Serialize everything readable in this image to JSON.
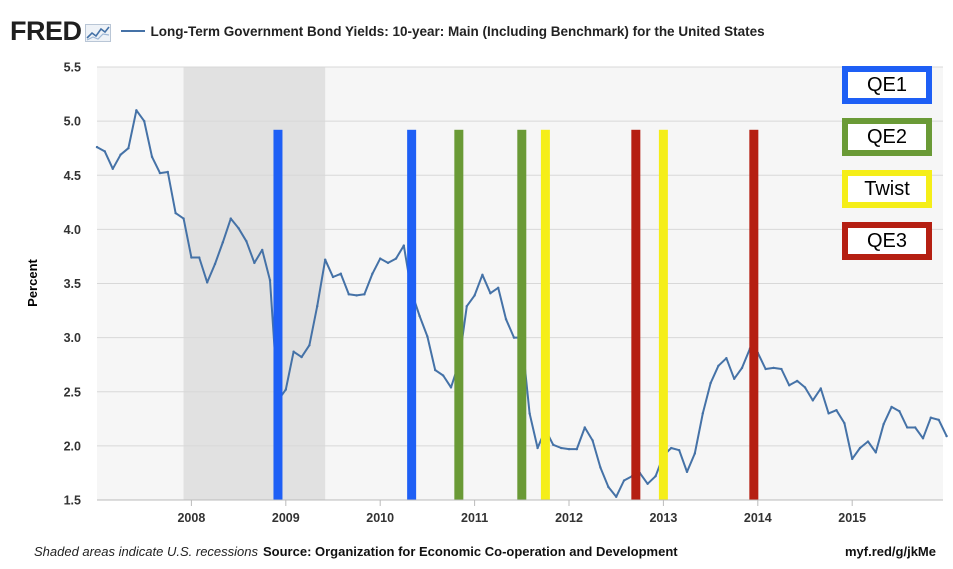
{
  "header": {
    "logo_text": "FRED",
    "logo_icon": "sparkline-icon",
    "title": "Long-Term Government Bond Yields: 10-year: Main (Including Benchmark) for the United States",
    "series_color": "#4572a7"
  },
  "footer": {
    "recession_note": "Shaded areas indicate U.S. recessions",
    "source": "Source: Organization for Economic Co-operation and Development",
    "short_link": "myf.red/g/jkMe"
  },
  "legend_boxes": [
    {
      "label": "QE1",
      "color": "#1e5ff5"
    },
    {
      "label": "QE2",
      "color": "#6a9a36"
    },
    {
      "label": "Twist",
      "color": "#f5ee18"
    },
    {
      "label": "QE3",
      "color": "#b51f12"
    }
  ],
  "chart_data": {
    "type": "line",
    "title": "Long-Term Government Bond Yields: 10-year: Main (Including Benchmark) for the United States",
    "xlabel": "",
    "ylabel": "Percent",
    "xlim": [
      2007.0,
      2016.0
    ],
    "ylim": [
      1.5,
      5.5
    ],
    "y_ticks": [
      "1.5",
      "2.0",
      "2.5",
      "3.0",
      "3.5",
      "4.0",
      "4.5",
      "5.0",
      "5.5"
    ],
    "x_ticks": [
      "2008",
      "2009",
      "2010",
      "2011",
      "2012",
      "2013",
      "2014",
      "2015"
    ],
    "grid": true,
    "recession_shading": [
      [
        2007.917,
        2009.417
      ]
    ],
    "series": [
      {
        "name": "Long-Term Government Bond Yields: 10-year: Main (Including Benchmark) for the United States",
        "color": "#4572a7",
        "x": [
          2007.0,
          2007.083,
          2007.167,
          2007.25,
          2007.333,
          2007.417,
          2007.5,
          2007.583,
          2007.667,
          2007.75,
          2007.833,
          2007.917,
          2008.0,
          2008.083,
          2008.167,
          2008.25,
          2008.333,
          2008.417,
          2008.5,
          2008.583,
          2008.667,
          2008.75,
          2008.833,
          2008.917,
          2009.0,
          2009.083,
          2009.167,
          2009.25,
          2009.333,
          2009.417,
          2009.5,
          2009.583,
          2009.667,
          2009.75,
          2009.833,
          2009.917,
          2010.0,
          2010.083,
          2010.167,
          2010.25,
          2010.333,
          2010.417,
          2010.5,
          2010.583,
          2010.667,
          2010.75,
          2010.833,
          2010.917,
          2011.0,
          2011.083,
          2011.167,
          2011.25,
          2011.333,
          2011.417,
          2011.5,
          2011.583,
          2011.667,
          2011.75,
          2011.833,
          2011.917,
          2012.0,
          2012.083,
          2012.167,
          2012.25,
          2012.333,
          2012.417,
          2012.5,
          2012.583,
          2012.667,
          2012.75,
          2012.833,
          2012.917,
          2013.0,
          2013.083,
          2013.167,
          2013.25,
          2013.333,
          2013.417,
          2013.5,
          2013.583,
          2013.667,
          2013.75,
          2013.833,
          2013.917,
          2014.0,
          2014.083,
          2014.167,
          2014.25,
          2014.333,
          2014.417,
          2014.5,
          2014.583,
          2014.667,
          2014.75,
          2014.833,
          2014.917,
          2015.0,
          2015.083,
          2015.167,
          2015.25,
          2015.333,
          2015.417,
          2015.5,
          2015.583,
          2015.667,
          2015.75,
          2015.833,
          2015.917,
          2016.0
        ],
        "y": [
          4.76,
          4.72,
          4.56,
          4.69,
          4.75,
          5.1,
          5.0,
          4.67,
          4.52,
          4.53,
          4.15,
          4.1,
          3.74,
          3.74,
          3.51,
          3.68,
          3.88,
          4.1,
          4.01,
          3.89,
          3.69,
          3.81,
          3.53,
          2.42,
          2.52,
          2.87,
          2.82,
          2.93,
          3.29,
          3.72,
          3.56,
          3.59,
          3.4,
          3.39,
          3.4,
          3.59,
          3.73,
          3.69,
          3.73,
          3.85,
          3.42,
          3.2,
          3.01,
          2.7,
          2.65,
          2.54,
          2.76,
          3.29,
          3.39,
          3.58,
          3.41,
          3.46,
          3.17,
          3.0,
          3.0,
          2.3,
          1.98,
          2.15,
          2.01,
          1.98,
          1.97,
          1.97,
          2.17,
          2.05,
          1.8,
          1.62,
          1.53,
          1.68,
          1.72,
          1.75,
          1.65,
          1.72,
          1.91,
          1.98,
          1.96,
          1.76,
          1.93,
          2.3,
          2.58,
          2.74,
          2.81,
          2.62,
          2.72,
          2.9,
          2.86,
          2.71,
          2.72,
          2.71,
          2.56,
          2.6,
          2.54,
          2.42,
          2.53,
          2.3,
          2.33,
          2.21,
          1.88,
          1.98,
          2.04,
          1.94,
          2.2,
          2.36,
          2.32,
          2.17,
          2.17,
          2.07,
          2.26,
          2.24,
          2.09
        ]
      }
    ],
    "program_markers": [
      {
        "program": "QE1",
        "color": "#1e5ff5",
        "dates": [
          2008.917,
          2010.333
        ]
      },
      {
        "program": "QE2",
        "color": "#6a9a36",
        "dates": [
          2010.833,
          2011.5
        ]
      },
      {
        "program": "Twist",
        "color": "#f5ee18",
        "dates": [
          2011.75,
          2013.0
        ]
      },
      {
        "program": "QE3",
        "color": "#b51f12",
        "dates": [
          2012.708,
          2013.958
        ]
      }
    ]
  }
}
